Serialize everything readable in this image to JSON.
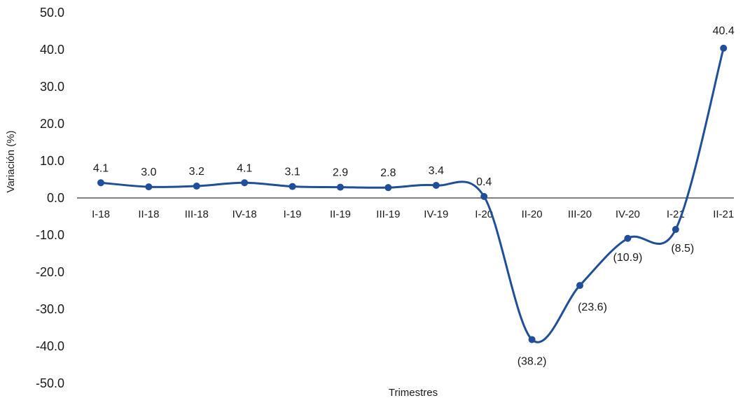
{
  "chart_data": {
    "type": "line",
    "title": "",
    "xlabel": "Trimestres",
    "ylabel": "Variación (%)",
    "ylim": [
      -50,
      50
    ],
    "yticks": [
      "50.0",
      "40.0",
      "30.0",
      "20.0",
      "10.0",
      "0.0",
      "-10.0",
      "-20.0",
      "-30.0",
      "-40.0",
      "-50.0"
    ],
    "categories": [
      "I-18",
      "II-18",
      "III-18",
      "IV-18",
      "I-19",
      "II-19",
      "III-19",
      "IV-19",
      "I-20",
      "II-20",
      "III-20",
      "IV-20",
      "I-21",
      "II-21"
    ],
    "series": [
      {
        "values": [
          4.1,
          3.0,
          3.2,
          4.1,
          3.1,
          2.9,
          2.8,
          3.4,
          0.4,
          -38.2,
          -23.6,
          -10.9,
          -8.5,
          40.4
        ],
        "labels": [
          "4.1",
          "3.0",
          "3.2",
          "4.1",
          "3.1",
          "2.9",
          "2.8",
          "3.4",
          "0.4",
          "(38.2)",
          "(23.6)",
          "(10.9)",
          "(8.5)",
          "40.4"
        ]
      }
    ],
    "line_color": "#1f4e9b",
    "grid": false,
    "legend": "none"
  }
}
